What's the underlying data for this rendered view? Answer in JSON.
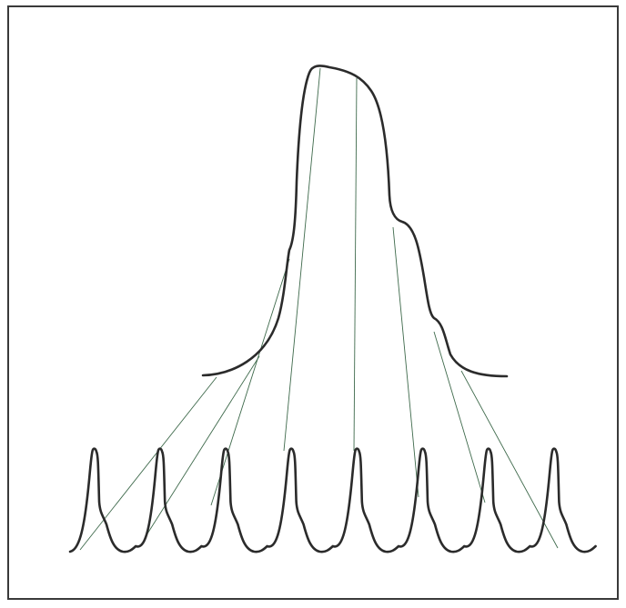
{
  "diagram": {
    "labels": [],
    "colors": {
      "frame": "#3a3a3a",
      "main_curve": "#2b2b2b",
      "pulse_train": "#2b2b2b",
      "connector_lines": "#3f6a4c"
    },
    "pulse_count": 8,
    "connector_count": 8
  }
}
